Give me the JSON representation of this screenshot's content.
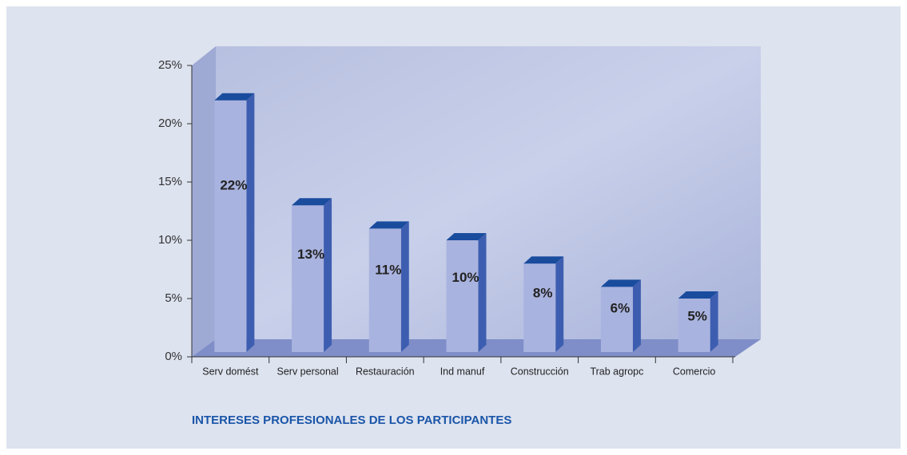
{
  "chart_data": {
    "type": "bar3d",
    "title": "INTERESES PROFESIONALES DE LOS PARTICIPANTES",
    "categories": [
      "Serv domést",
      "Serv personal",
      "Restauración",
      "Ind manuf",
      "Construcción",
      "Trab agropc",
      "Comercio"
    ],
    "values": [
      22,
      13,
      11,
      10,
      8,
      6,
      5
    ],
    "value_labels": [
      "22%",
      "13%",
      "11%",
      "10%",
      "8%",
      "6%",
      "5%"
    ],
    "color": "#a9b3df",
    "ylim": [
      0,
      25
    ],
    "yticks": [
      {
        "value": 0,
        "label": "0%"
      },
      {
        "value": 5,
        "label": "5%"
      },
      {
        "value": 10,
        "label": "10%"
      },
      {
        "value": 15,
        "label": "15%"
      },
      {
        "value": 20,
        "label": "20%"
      },
      {
        "value": 25,
        "label": "25%"
      }
    ]
  }
}
